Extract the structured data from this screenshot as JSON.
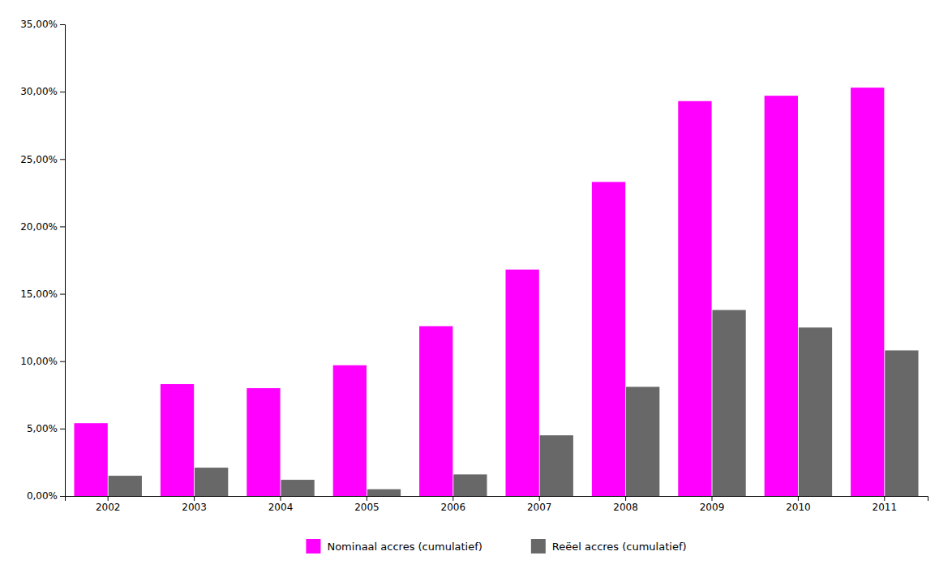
{
  "chart_data": {
    "type": "bar",
    "categories": [
      "2002",
      "2003",
      "2004",
      "2005",
      "2006",
      "2007",
      "2008",
      "2009",
      "2010",
      "2011"
    ],
    "series": [
      {
        "name": "Nominaal accres (cumulatief)",
        "color": "#FF00FF",
        "values": [
          0.054,
          0.083,
          0.08,
          0.097,
          0.126,
          0.168,
          0.233,
          0.293,
          0.297,
          0.303
        ]
      },
      {
        "name": "Reëel accres (cumulatief)",
        "color": "#686868",
        "values": [
          0.015,
          0.021,
          0.012,
          0.005,
          0.016,
          0.045,
          0.081,
          0.138,
          0.125,
          0.108
        ]
      }
    ],
    "ylim": [
      0,
      0.35
    ],
    "yticks": [
      {
        "value": 0.0,
        "label": "0,00%"
      },
      {
        "value": 0.05,
        "label": "5,00%"
      },
      {
        "value": 0.1,
        "label": "10,00%"
      },
      {
        "value": 0.15,
        "label": "15,00%"
      },
      {
        "value": 0.2,
        "label": "20,00%"
      },
      {
        "value": 0.25,
        "label": "25,00%"
      },
      {
        "value": 0.3,
        "label": "30,00%"
      },
      {
        "value": 0.35,
        "label": "35,00%"
      }
    ],
    "grid": false,
    "legend": "bottom"
  }
}
